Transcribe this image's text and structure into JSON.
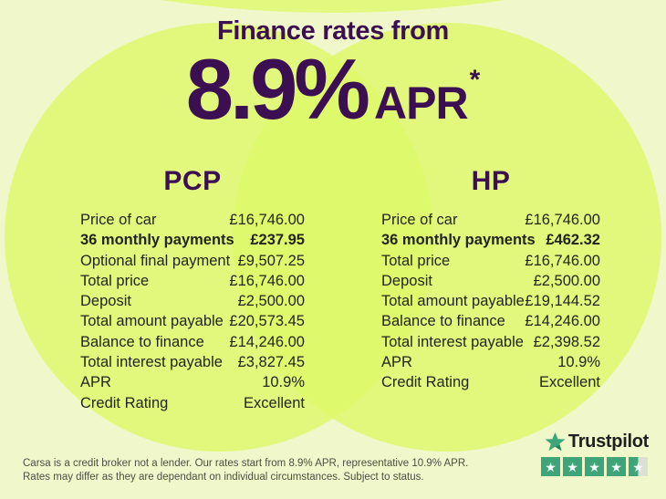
{
  "header": {
    "title": "Finance rates from",
    "rate": "8.9%",
    "rate_suffix": "APR",
    "asterisk": "*"
  },
  "tables": {
    "pcp": {
      "title": "PCP",
      "rows": [
        {
          "label": "Price of car",
          "value": "£16,746.00",
          "bold": false
        },
        {
          "label": "36 monthly payments",
          "value": "£237.95",
          "bold": true
        },
        {
          "label": "Optional final payment",
          "value": "£9,507.25",
          "bold": false
        },
        {
          "label": "Total price",
          "value": "£16,746.00",
          "bold": false
        },
        {
          "label": "Deposit",
          "value": "£2,500.00",
          "bold": false
        },
        {
          "label": "Total amount payable",
          "value": "£20,573.45",
          "bold": false
        },
        {
          "label": "Balance to finance",
          "value": "£14,246.00",
          "bold": false
        },
        {
          "label": "Total interest payable",
          "value": "£3,827.45",
          "bold": false
        },
        {
          "label": "APR",
          "value": "10.9%",
          "bold": false
        },
        {
          "label": "Credit Rating",
          "value": "Excellent",
          "bold": false
        }
      ]
    },
    "hp": {
      "title": "HP",
      "rows": [
        {
          "label": "Price of car",
          "value": "£16,746.00",
          "bold": false
        },
        {
          "label": "36 monthly payments",
          "value": "£462.32",
          "bold": true
        },
        {
          "label": "Total price",
          "value": "£16,746.00",
          "bold": false
        },
        {
          "label": "Deposit",
          "value": "£2,500.00",
          "bold": false
        },
        {
          "label": "Total amount payable",
          "value": "£19,144.52",
          "bold": false
        },
        {
          "label": "Balance to finance",
          "value": "£14,246.00",
          "bold": false
        },
        {
          "label": "Total interest payable",
          "value": "£2,398.52",
          "bold": false
        },
        {
          "label": "APR",
          "value": "10.9%",
          "bold": false
        },
        {
          "label": "Credit Rating",
          "value": "Excellent",
          "bold": false
        }
      ]
    }
  },
  "footer": {
    "disclaimer_line1": "Carsa is a credit broker not a lender. Our rates start from 8.9% APR, representative 10.9% APR.",
    "disclaimer_line2": "Rates may differ as they are dependant on individual circumstances. Subject to status.",
    "trustpilot": {
      "brand": "Trustpilot",
      "rating": 4.5,
      "stars": [
        1,
        1,
        1,
        1,
        0.5
      ]
    }
  },
  "colors": {
    "accent_purple": "#3b0f52",
    "lime_circle": "#e2f87e",
    "pale_background": "#f0f7ca",
    "trustpilot_green": "#3ea578",
    "table_text": "#23241b"
  }
}
